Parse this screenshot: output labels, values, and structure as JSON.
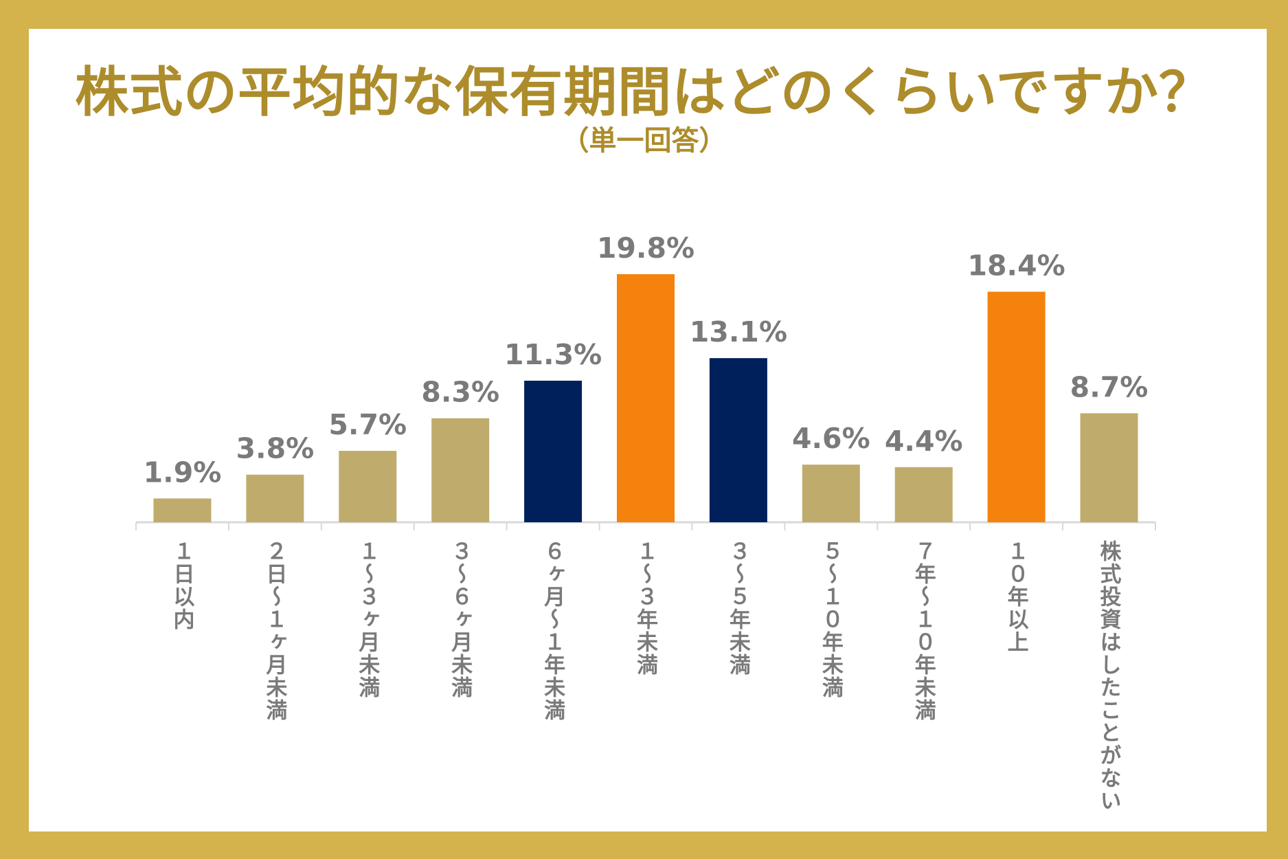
{
  "chart_data": {
    "type": "bar",
    "title": "株式の平均的な保有期間はどのくらいですか？",
    "subtitle": "（単一回答）",
    "categories": [
      "１日以内",
      "２日〜１ヶ月未満",
      "１〜３ヶ月未満",
      "３〜６ヶ月未満",
      "６ヶ月〜１年未満",
      "１〜３年未満",
      "３〜５年未満",
      "５〜１０年未満",
      "７年〜１０年未満",
      "１０年以上",
      "株式投資はしたことがない"
    ],
    "values": [
      1.9,
      3.8,
      5.7,
      8.3,
      11.3,
      19.8,
      13.1,
      4.6,
      4.4,
      18.4,
      8.7
    ],
    "value_labels": [
      "1.9%",
      "3.8%",
      "5.7%",
      "8.3%",
      "11.3%",
      "19.8%",
      "13.1%",
      "4.6%",
      "4.4%",
      "18.4%",
      "8.7%"
    ],
    "bar_colors": [
      "#bfac6c",
      "#bfac6c",
      "#bfac6c",
      "#bfac6c",
      "#00205b",
      "#f5820d",
      "#00205b",
      "#bfac6c",
      "#bfac6c",
      "#f5820d",
      "#bfac6c"
    ],
    "xlabel": "",
    "ylabel": "",
    "ylim": [
      0,
      19.8
    ],
    "grid": false,
    "legend": "none"
  },
  "colors": {
    "frame": "#d4b24c",
    "title": "#ad8c2b",
    "label": "#7a7a7a",
    "axis": "#d9d9d9"
  }
}
